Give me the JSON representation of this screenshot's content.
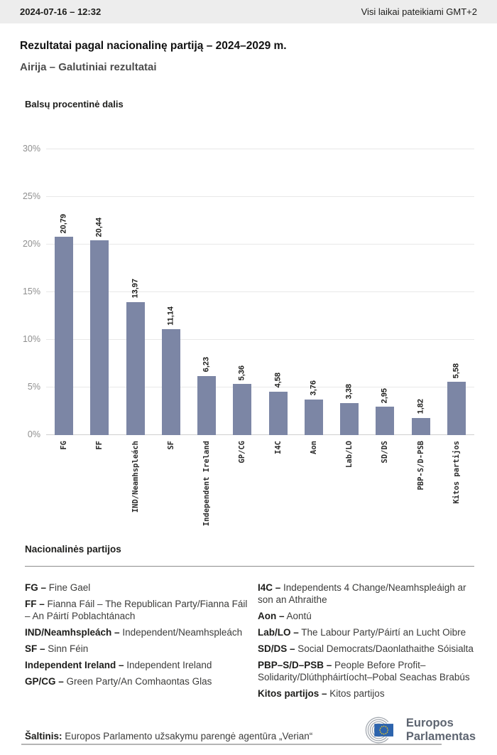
{
  "header": {
    "datetime": "2024-07-16 – 12:32",
    "timezone_note": "Visi laikai pateikiami GMT+2"
  },
  "page": {
    "title": "Rezultatai pagal nacionalinę partiją – 2024–2029 m.",
    "subtitle": "Airija – Galutiniai rezultatai"
  },
  "chart_data": {
    "type": "bar",
    "title": "Balsų procentinė dalis",
    "categories": [
      "FG",
      "FF",
      "IND/Neamhspleách",
      "SF",
      "Independent Ireland",
      "GP/CG",
      "I4C",
      "Aon",
      "Lab/LO",
      "SD/DS",
      "PBP-S/D-PSB",
      "Kitos partijos"
    ],
    "values": [
      20.79,
      20.44,
      13.97,
      11.14,
      6.23,
      5.36,
      4.58,
      3.76,
      3.38,
      2.95,
      1.82,
      5.58
    ],
    "value_labels": [
      "20,79",
      "20,44",
      "13,97",
      "11,14",
      "6,23",
      "5,36",
      "4,58",
      "3,76",
      "3,38",
      "2,95",
      "1,82",
      "5,58"
    ],
    "ylim": [
      0,
      30
    ],
    "yticks": [
      0,
      5,
      10,
      15,
      20,
      25,
      30
    ],
    "ytick_labels": [
      "0%",
      "5%",
      "10%",
      "15%",
      "20%",
      "25%",
      "30%"
    ],
    "grid": true,
    "bar_color": "#7c86a5",
    "xlabel": "",
    "ylabel": ""
  },
  "legend": {
    "heading": "Nacionalinės partijos",
    "columns": [
      [
        {
          "term": "FG –",
          "desc": "Fine Gael"
        },
        {
          "term": "FF –",
          "desc": "Fianna Fáil – The Republican Party/Fianna Fáil – An Páirtí Poblachtánach"
        },
        {
          "term": "IND/Neamhspleách –",
          "desc": "Independent/Neamhspleách"
        },
        {
          "term": "SF –",
          "desc": "Sinn Féin"
        },
        {
          "term": "Independent Ireland –",
          "desc": "Independent Ireland"
        },
        {
          "term": "GP/CG –",
          "desc": "Green Party/An Comhaontas Glas"
        }
      ],
      [
        {
          "term": "I4C –",
          "desc": "Independents 4 Change/Neamhspleáigh ar son an Athraithe"
        },
        {
          "term": "Aon –",
          "desc": "Aontú"
        },
        {
          "term": "Lab/LO –",
          "desc": "The Labour Party/Páirtí an Lucht Oibre"
        },
        {
          "term": "SD/DS –",
          "desc": "Social Democrats/Daonlathaithe Sóisialta"
        },
        {
          "term": "PBP–S/D–PSB –",
          "desc": "People Before Profit–Solidarity/Dlúthpháirtíocht–Pobal Seachas Brabús"
        },
        {
          "term": "Kitos partijos –",
          "desc": "Kitos partijos"
        }
      ]
    ]
  },
  "footer": {
    "source_label": "Šaltinis:",
    "source_text": " Europos Parlamento užsakymu parengė agentūra „Verian“",
    "logo_line1": "Europos",
    "logo_line2": "Parlamentas",
    "logo_colors": {
      "flag_blue": "#2d64ad",
      "star_yellow": "#fdd116",
      "hemicycle_gray": "#a4a9b0"
    }
  }
}
